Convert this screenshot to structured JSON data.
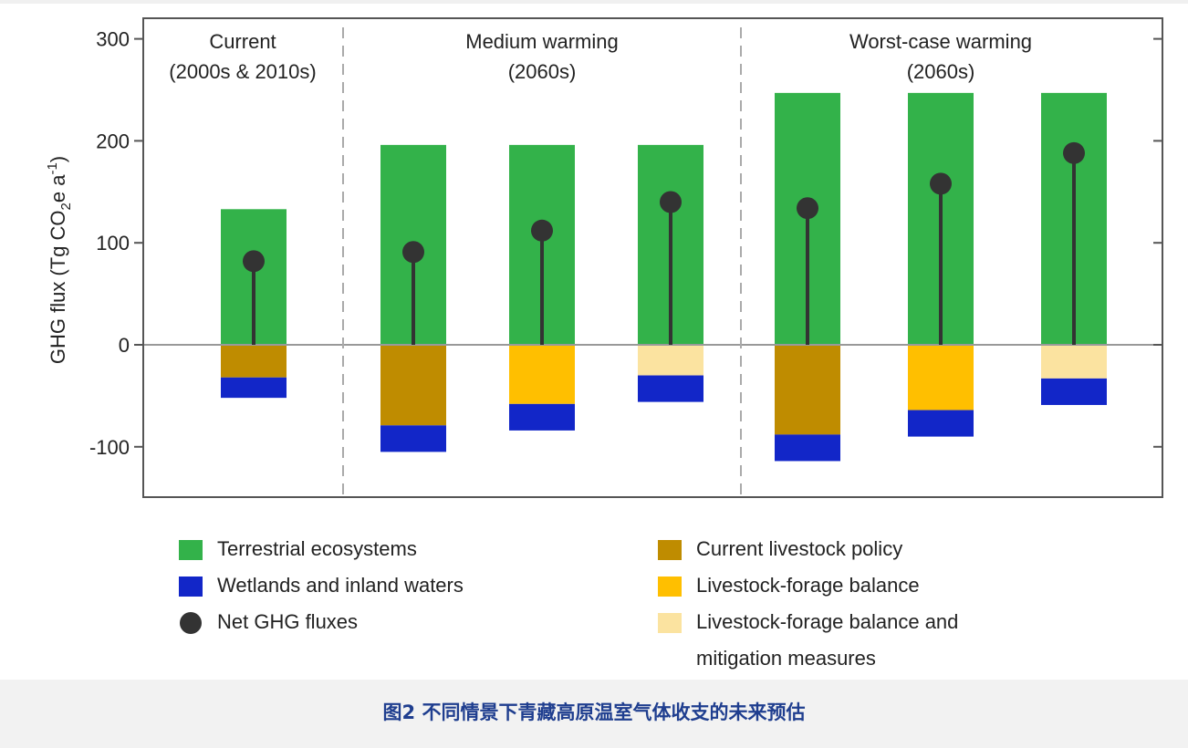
{
  "chart_data": {
    "type": "bar",
    "ylabel_main": "GHG flux (Tg CO",
    "ylabel_sub": "2",
    "ylabel_mid": "e a",
    "ylabel_sup": "-1",
    "ylabel_end": ")",
    "ylim": [
      -150,
      320
    ],
    "yticks": [
      {
        "value": 300,
        "label": "300"
      },
      {
        "value": 200,
        "label": "200"
      },
      {
        "value": 100,
        "label": "100"
      },
      {
        "value": 0,
        "label": "0"
      },
      {
        "value": -100,
        "label": "-100"
      }
    ],
    "panels": [
      {
        "title1": "Current",
        "title2": "(2000s & 2010s)"
      },
      {
        "title1": "Medium warming",
        "title2": "(2060s)"
      },
      {
        "title1": "Worst-case warming",
        "title2": "(2060s)"
      }
    ],
    "series_names": {
      "terrestrial": "Terrestrial ecosystems",
      "wetlands": "Wetlands and inland waters",
      "net": "Net GHG fluxes",
      "current_policy": "Current livestock policy",
      "forage_balance": "Livestock-forage balance",
      "forage_mitigation": "Livestock-forage balance and mitigation measures"
    },
    "colors": {
      "terrestrial": "#33b24a",
      "wetlands": "#1226c8",
      "net": "#333333",
      "current_policy": "#bf8c00",
      "forage_balance": "#ffbf00",
      "forage_mitigation": "#fbe3a0",
      "grid_zero": "#999999",
      "divider": "#aaaaaa"
    },
    "bars": [
      {
        "panel": 0,
        "terrestrial": 133,
        "livestock_type": "current_policy",
        "livestock": -32,
        "wetlands": -20,
        "net": 82
      },
      {
        "panel": 1,
        "terrestrial": 196,
        "livestock_type": "current_policy",
        "livestock": -79,
        "wetlands": -26,
        "net": 91
      },
      {
        "panel": 1,
        "terrestrial": 196,
        "livestock_type": "forage_balance",
        "livestock": -58,
        "wetlands": -26,
        "net": 112
      },
      {
        "panel": 1,
        "terrestrial": 196,
        "livestock_type": "forage_mitigation",
        "livestock": -30,
        "wetlands": -26,
        "net": 140
      },
      {
        "panel": 2,
        "terrestrial": 247,
        "livestock_type": "current_policy",
        "livestock": -88,
        "wetlands": -26,
        "net": 134
      },
      {
        "panel": 2,
        "terrestrial": 247,
        "livestock_type": "forage_balance",
        "livestock": -64,
        "wetlands": -26,
        "net": 158
      },
      {
        "panel": 2,
        "terrestrial": 247,
        "livestock_type": "forage_mitigation",
        "livestock": -33,
        "wetlands": -26,
        "net": 188
      }
    ]
  },
  "legend": {
    "terrestrial": "Terrestrial ecosystems",
    "wetlands": "Wetlands and inland waters",
    "net": "Net GHG fluxes",
    "current_policy": "Current livestock policy",
    "forage_balance": "Livestock-forage balance",
    "forage_mitigation_line1": "Livestock-forage balance and",
    "forage_mitigation_line2": "mitigation measures"
  },
  "caption": "图2 不同情景下青藏高原温室气体收支的未来预估"
}
